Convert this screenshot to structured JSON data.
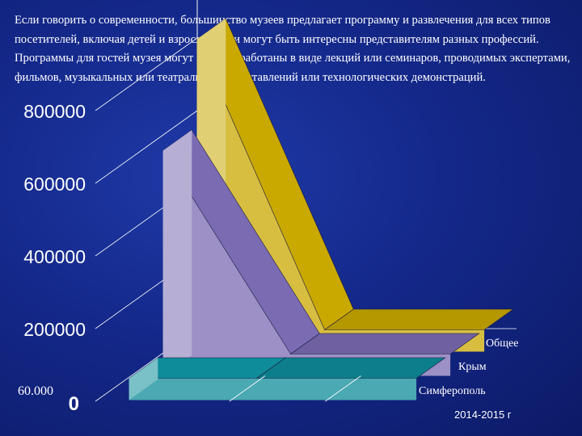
{
  "text": {
    "paragraph": "Если говорить о современности, большинство музеев предлагает программу и развлечения для всех типов посетителей, включая детей и взрослых; они могут быть интересны представителям разных профессий. Программы для гостей музея могут быть разработаны в виде лекций или семинаров, проводимых экспертами, фильмов, музыкальных или театральных представлений или технологических демонстраций."
  },
  "chart_data": {
    "type": "area",
    "three_d": true,
    "categories": [
      "",
      ""
    ],
    "x_period_label": "2014-2015 г",
    "ylim": [
      0,
      1000000
    ],
    "y_ticks": [
      0,
      200000,
      400000,
      600000,
      800000
    ],
    "y_tick_labels": [
      "0",
      "200000",
      "400000",
      "600000",
      "800000"
    ],
    "annotation": "60.000",
    "grid": true,
    "series": [
      {
        "name": "Симферополь",
        "values": [
          60000,
          60000
        ],
        "color": "#0e8c9a"
      },
      {
        "name": "Крым",
        "values": [
          620000,
          60000
        ],
        "color": "#7b6bb3"
      },
      {
        "name": "Общее",
        "values": [
          860000,
          60000
        ],
        "color": "#c9a800"
      }
    ]
  }
}
